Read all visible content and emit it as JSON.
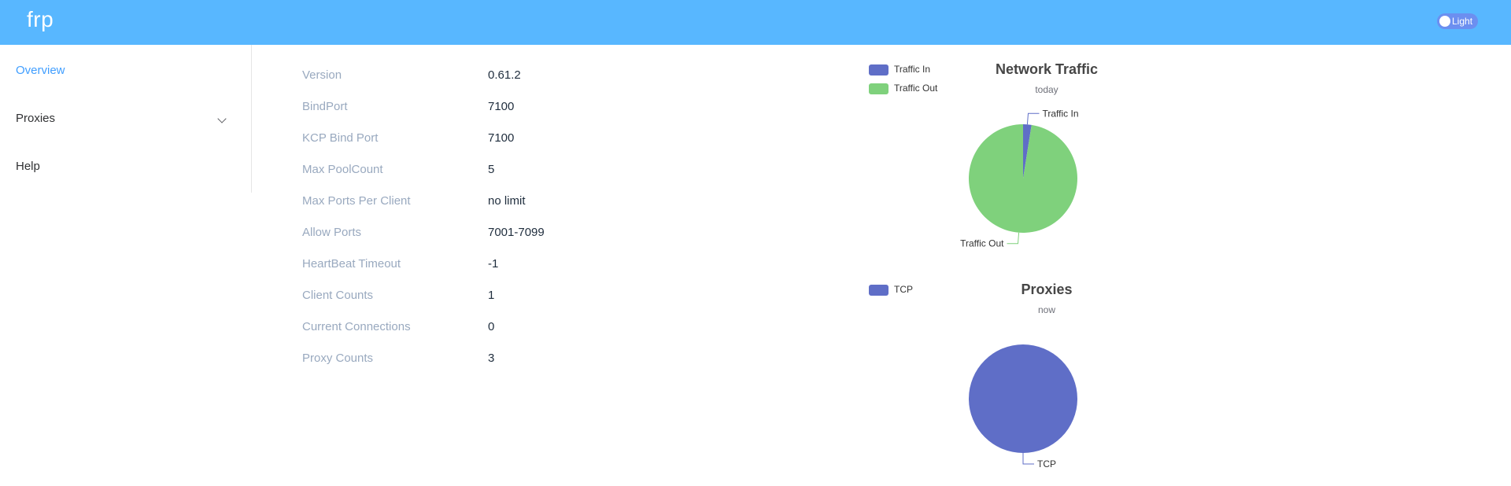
{
  "header": {
    "logo": "frp",
    "theme_toggle_label": "Light"
  },
  "sidebar": {
    "items": [
      {
        "label": "Overview",
        "active": true
      },
      {
        "label": "Proxies",
        "active": false,
        "expandable": true
      },
      {
        "label": "Help",
        "active": false
      }
    ]
  },
  "overview": {
    "rows": [
      {
        "label": "Version",
        "value": "0.61.2"
      },
      {
        "label": "BindPort",
        "value": "7100"
      },
      {
        "label": "KCP Bind Port",
        "value": "7100"
      },
      {
        "label": "Max PoolCount",
        "value": "5"
      },
      {
        "label": "Max Ports Per Client",
        "value": "no limit"
      },
      {
        "label": "Allow Ports",
        "value": "7001-7099"
      },
      {
        "label": "HeartBeat Timeout",
        "value": "-1"
      },
      {
        "label": "Client Counts",
        "value": "1"
      },
      {
        "label": "Current Connections",
        "value": "0"
      },
      {
        "label": "Proxy Counts",
        "value": "3"
      }
    ]
  },
  "colors": {
    "header": "#58b7ff",
    "active": "#409eff",
    "traffic_in": "#5f6ec7",
    "traffic_out": "#7fd17c",
    "tcp": "#5f6ec7"
  },
  "chart_data": [
    {
      "type": "pie",
      "title": "Network Traffic",
      "subtitle": "today",
      "legend": "top-left",
      "series": [
        {
          "name": "Traffic In",
          "value": 2.5,
          "color": "#5f6ec7"
        },
        {
          "name": "Traffic Out",
          "value": 97.5,
          "color": "#7fd17c"
        }
      ]
    },
    {
      "type": "pie",
      "title": "Proxies",
      "subtitle": "now",
      "legend": "top-left",
      "series": [
        {
          "name": "TCP",
          "value": 3,
          "color": "#5f6ec7"
        }
      ]
    }
  ]
}
